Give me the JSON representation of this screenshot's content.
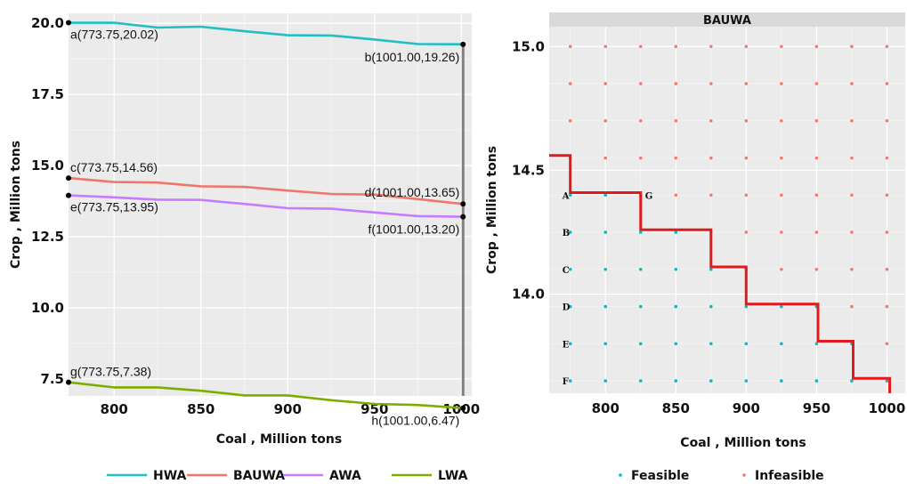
{
  "chart_data": [
    {
      "type": "line",
      "xlabel": "Coal  , Million tons",
      "ylabel": "Crop , Million tons",
      "xlim": [
        773.75,
        1006
      ],
      "ylim": [
        6.9,
        20.35
      ],
      "xticks": [
        800,
        850,
        900,
        950,
        1000
      ],
      "yticks": [
        7.5,
        10.0,
        12.5,
        15.0,
        17.5,
        20.0
      ],
      "ytick_labels": [
        "7.5",
        "10.0",
        "12.5",
        "15.0",
        "17.5",
        "20.0"
      ],
      "grid": true,
      "legend_position": "bottom",
      "vline_x": 1001,
      "series": [
        {
          "name": "HWA",
          "color": "#1fbfc4",
          "x": [
            773.75,
            800,
            825,
            850,
            875,
            900,
            925,
            950,
            975,
            1001
          ],
          "y": [
            20.02,
            20.02,
            19.85,
            19.88,
            19.72,
            19.58,
            19.57,
            19.43,
            19.27,
            19.26
          ]
        },
        {
          "name": "BAUWA",
          "color": "#f0766c",
          "x": [
            773.75,
            800,
            825,
            850,
            875,
            900,
            925,
            950,
            975,
            1001
          ],
          "y": [
            14.56,
            14.42,
            14.4,
            14.27,
            14.25,
            14.12,
            14.0,
            13.98,
            13.82,
            13.65
          ]
        },
        {
          "name": "AWA",
          "color": "#c77cff",
          "x": [
            773.75,
            800,
            825,
            850,
            875,
            900,
            925,
            950,
            975,
            1001
          ],
          "y": [
            13.95,
            13.88,
            13.8,
            13.79,
            13.65,
            13.5,
            13.48,
            13.35,
            13.22,
            13.2
          ]
        },
        {
          "name": "LWA",
          "color": "#7cae00",
          "x": [
            773.75,
            800,
            825,
            850,
            875,
            900,
            925,
            950,
            975,
            1001
          ],
          "y": [
            7.38,
            7.2,
            7.2,
            7.08,
            6.92,
            6.92,
            6.75,
            6.62,
            6.58,
            6.47
          ]
        }
      ],
      "annotations": [
        {
          "label": "a(773.75,20.02)",
          "x": 773.75,
          "y": 20.02
        },
        {
          "label": "b(1001.00,19.26)",
          "x": 1001,
          "y": 19.26
        },
        {
          "label": "c(773.75,14.56)",
          "x": 773.75,
          "y": 14.56
        },
        {
          "label": "d(1001.00,13.65)",
          "x": 1001,
          "y": 13.65
        },
        {
          "label": "e(773.75,13.95)",
          "x": 773.75,
          "y": 13.95
        },
        {
          "label": "f(1001.00,13.20)",
          "x": 1001,
          "y": 13.2
        },
        {
          "label": "g(773.75,7.38)",
          "x": 773.75,
          "y": 7.38
        },
        {
          "label": "h(1001.00,6.47)",
          "x": 1001,
          "y": 6.47
        }
      ]
    },
    {
      "type": "scatter",
      "facet_title": "BAUWA",
      "xlabel": "Coal  , Million tons",
      "ylabel": "Crop , Million tons",
      "xlim": [
        760,
        1013
      ],
      "ylim": [
        13.6,
        15.08
      ],
      "xticks": [
        800,
        850,
        900,
        950,
        1000
      ],
      "yticks": [
        14.0,
        14.5,
        15.0
      ],
      "ytick_labels": [
        "14.0",
        "14.5",
        "15.0"
      ],
      "grid": true,
      "legend_position": "bottom",
      "x_points": [
        775,
        800,
        825,
        850,
        875,
        900,
        925,
        950,
        975,
        1000
      ],
      "y_points": [
        13.65,
        13.8,
        13.95,
        14.1,
        14.25,
        14.4,
        14.55,
        14.7,
        14.85,
        15.0
      ],
      "frontier_steps": [
        {
          "x": 760,
          "y": 14.56
        },
        {
          "x": 775,
          "y": 14.56
        },
        {
          "x": 775,
          "y": 14.41
        },
        {
          "x": 825,
          "y": 14.41
        },
        {
          "x": 825,
          "y": 14.26
        },
        {
          "x": 875,
          "y": 14.26
        },
        {
          "x": 875,
          "y": 14.11
        },
        {
          "x": 900,
          "y": 14.11
        },
        {
          "x": 900,
          "y": 13.96
        },
        {
          "x": 951,
          "y": 13.96
        },
        {
          "x": 951,
          "y": 13.81
        },
        {
          "x": 976,
          "y": 13.81
        },
        {
          "x": 976,
          "y": 13.66
        },
        {
          "x": 1002,
          "y": 13.66
        },
        {
          "x": 1002,
          "y": 13.6
        }
      ],
      "frontier_color": "#e31a1c",
      "point_labels": [
        {
          "label": "A",
          "x": 775,
          "y": 14.4
        },
        {
          "label": "G",
          "x": 825,
          "y": 14.4
        },
        {
          "label": "B",
          "x": 775,
          "y": 14.25
        },
        {
          "label": "C",
          "x": 775,
          "y": 14.1
        },
        {
          "label": "D",
          "x": 775,
          "y": 13.95
        },
        {
          "label": "E",
          "x": 775,
          "y": 13.8
        },
        {
          "label": "F",
          "x": 775,
          "y": 13.65
        }
      ],
      "series": [
        {
          "name": "Feasible",
          "color": "#00bfc4"
        },
        {
          "name": "Infeasible",
          "color": "#f8766d"
        }
      ]
    }
  ]
}
